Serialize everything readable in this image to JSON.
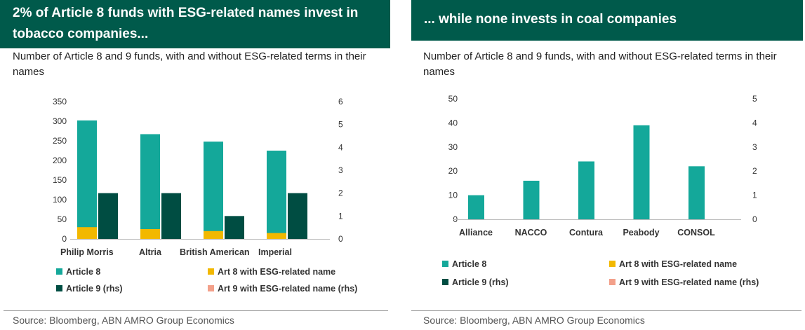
{
  "colors": {
    "article8": "#14a89a",
    "art8_esg": "#f2b800",
    "article9": "#004d42",
    "art9_esg": "#f3a08a",
    "title_bg": "#005a4b"
  },
  "left": {
    "title": "2% of Article 8 funds with ESG-related names invest in tobacco companies...",
    "subtitle": "Number of Article 8 and 9 funds, with and without ESG-related terms in their names",
    "source": "Source: Bloomberg, ABN AMRO Group Economics"
  },
  "right": {
    "title": "... while none invests in coal companies",
    "subtitle": "Number of Article 8 and 9 funds, with and without ESG-related terms in their names",
    "source": "Source: Bloomberg, ABN AMRO Group Economics"
  },
  "chart_data": [
    {
      "type": "bar",
      "title": "2% of Article 8 funds with ESG-related names invest in tobacco companies...",
      "categories": [
        "Philip Morris",
        "Altria",
        "British American",
        "Imperial"
      ],
      "ylim": [
        0,
        350
      ],
      "yticks": [
        "0",
        "50",
        "100",
        "150",
        "200",
        "250",
        "300",
        "350"
      ],
      "y2lim": [
        0,
        6
      ],
      "y2ticks": [
        "0",
        "1",
        "2",
        "3",
        "4",
        "5",
        "6"
      ],
      "series": [
        {
          "name": "Article 8",
          "key": "article8",
          "axis": "left",
          "values": [
            302,
            267,
            248,
            225
          ]
        },
        {
          "name": "Art 8 with ESG-related name",
          "key": "art8_esg",
          "axis": "left",
          "values": [
            30,
            25,
            20,
            15
          ]
        },
        {
          "name": "Article 9 (rhs)",
          "key": "article9",
          "axis": "right",
          "values": [
            2,
            2,
            1,
            2
          ]
        },
        {
          "name": "Art 9 with ESG-related name (rhs)",
          "key": "art9_esg",
          "axis": "right",
          "values": [
            0,
            0,
            0,
            0
          ]
        }
      ],
      "legend": [
        "Article 8",
        "Art 8 with ESG-related name",
        "Article 9 (rhs)",
        "Art 9 with ESG-related name (rhs)"
      ]
    },
    {
      "type": "bar",
      "title": "... while none invests in coal companies",
      "categories": [
        "Alliance",
        "NACCO",
        "Contura",
        "Peabody",
        "CONSOL"
      ],
      "ylim": [
        0,
        50
      ],
      "yticks": [
        "0",
        "10",
        "20",
        "30",
        "40",
        "50"
      ],
      "y2lim": [
        0,
        5
      ],
      "y2ticks": [
        "0",
        "1",
        "2",
        "3",
        "4",
        "5"
      ],
      "series": [
        {
          "name": "Article 8",
          "key": "article8",
          "axis": "left",
          "values": [
            10,
            16,
            24,
            39,
            22
          ]
        },
        {
          "name": "Art 8 with ESG-related name",
          "key": "art8_esg",
          "axis": "left",
          "values": [
            0,
            0,
            0,
            0,
            0
          ]
        },
        {
          "name": "Article 9 (rhs)",
          "key": "article9",
          "axis": "right",
          "values": [
            0,
            0,
            0,
            0,
            0
          ]
        },
        {
          "name": "Art 9 with ESG-related name (rhs)",
          "key": "art9_esg",
          "axis": "right",
          "values": [
            0,
            0,
            0,
            0,
            0
          ]
        }
      ],
      "legend": [
        "Article 8",
        "Art 8 with ESG-related name",
        "Article 9 (rhs)",
        "Art 9 with ESG-related name (rhs)"
      ]
    }
  ]
}
